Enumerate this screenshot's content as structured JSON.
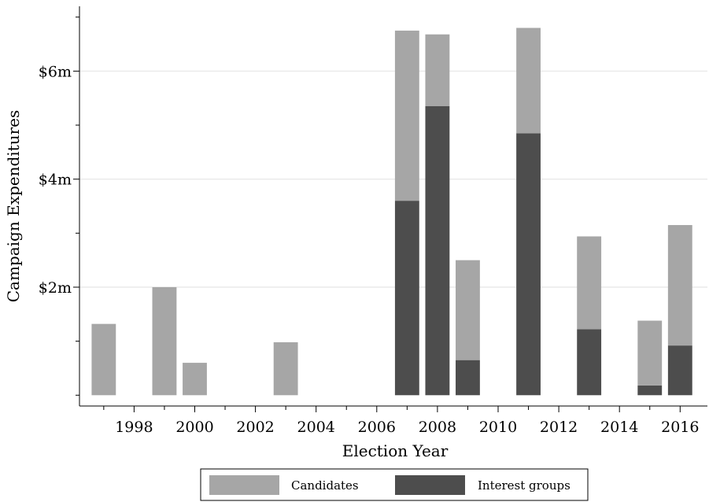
{
  "chart_data": {
    "type": "bar",
    "stacked": true,
    "xlabel": "Election Year",
    "ylabel": "Campaign Expenditures",
    "x": [
      1997,
      1999,
      2000,
      2003,
      2007,
      2008,
      2009,
      2011,
      2013,
      2015,
      2016
    ],
    "series": [
      {
        "name": "Interest groups",
        "color": "#4d4d4d",
        "values": [
          0,
          0,
          0,
          0,
          3.6,
          5.35,
          0.65,
          4.85,
          1.22,
          0.18,
          0.92
        ]
      },
      {
        "name": "Candidates",
        "color": "#a6a6a6",
        "values": [
          1.32,
          2.0,
          0.6,
          0.98,
          3.15,
          1.33,
          1.85,
          1.95,
          1.72,
          1.2,
          2.23
        ]
      }
    ],
    "xlim": [
      1996.2,
      2016.9
    ],
    "ylim": [
      -0.2,
      7.2
    ],
    "x_ticks": [
      1998,
      2000,
      2002,
      2004,
      2006,
      2008,
      2010,
      2012,
      2014,
      2016
    ],
    "y_ticks": [
      2,
      4,
      6
    ],
    "y_tick_labels": [
      "$2m",
      "$4m",
      "$6m"
    ],
    "gridlines": true,
    "legend_position": "bottom"
  }
}
